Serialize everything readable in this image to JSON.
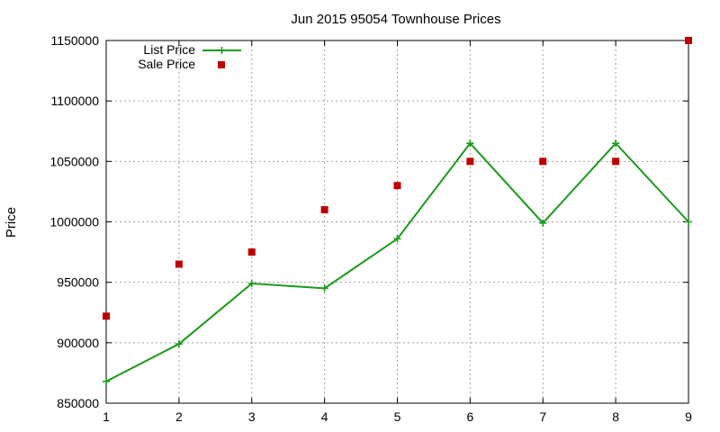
{
  "chart_data": {
    "type": "line",
    "title": "Jun 2015 95054 Townhouse Prices",
    "xlabel": "",
    "ylabel": "Price",
    "x": [
      1,
      2,
      3,
      4,
      5,
      6,
      7,
      8,
      9
    ],
    "xlim": [
      1,
      9
    ],
    "ylim": [
      850000,
      1150000
    ],
    "xticks": [
      "1",
      "2",
      "3",
      "4",
      "5",
      "6",
      "7",
      "8",
      "9"
    ],
    "yticks": [
      "850000",
      "900000",
      "950000",
      "1000000",
      "1050000",
      "1100000",
      "1150000"
    ],
    "grid": true,
    "legend_position": "top-left",
    "series": [
      {
        "name": "List Price",
        "style": "line-with-plus-markers",
        "color": "#1a9a1a",
        "values": [
          868000,
          899000,
          949000,
          945000,
          986000,
          1065000,
          999000,
          1065000,
          1000000
        ]
      },
      {
        "name": "Sale Price",
        "style": "square-markers",
        "color": "#c00000",
        "values": [
          922000,
          965000,
          975000,
          1010000,
          1030000,
          1050000,
          1050000,
          1050000,
          1150000
        ]
      }
    ]
  }
}
